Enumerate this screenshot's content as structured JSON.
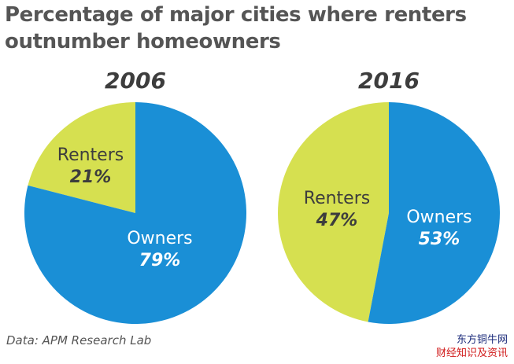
{
  "title": "Percentage of major cities where renters outnumber homeowners",
  "source": "Data: APM Research Lab",
  "watermark": {
    "line1": "东方铜牛网",
    "line2": "财经知识及资讯"
  },
  "colors": {
    "owners": "#1a8fd6",
    "renters": "#d6e050",
    "text_dark": "#3d3d3d",
    "text_light": "#ffffff"
  },
  "chart_data": [
    {
      "type": "pie",
      "title": "2006",
      "slices": [
        {
          "label": "Renters",
          "value": 21,
          "display": "21%"
        },
        {
          "label": "Owners",
          "value": 79,
          "display": "79%"
        }
      ]
    },
    {
      "type": "pie",
      "title": "2016",
      "slices": [
        {
          "label": "Renters",
          "value": 47,
          "display": "47%"
        },
        {
          "label": "Owners",
          "value": 53,
          "display": "53%"
        }
      ]
    }
  ]
}
